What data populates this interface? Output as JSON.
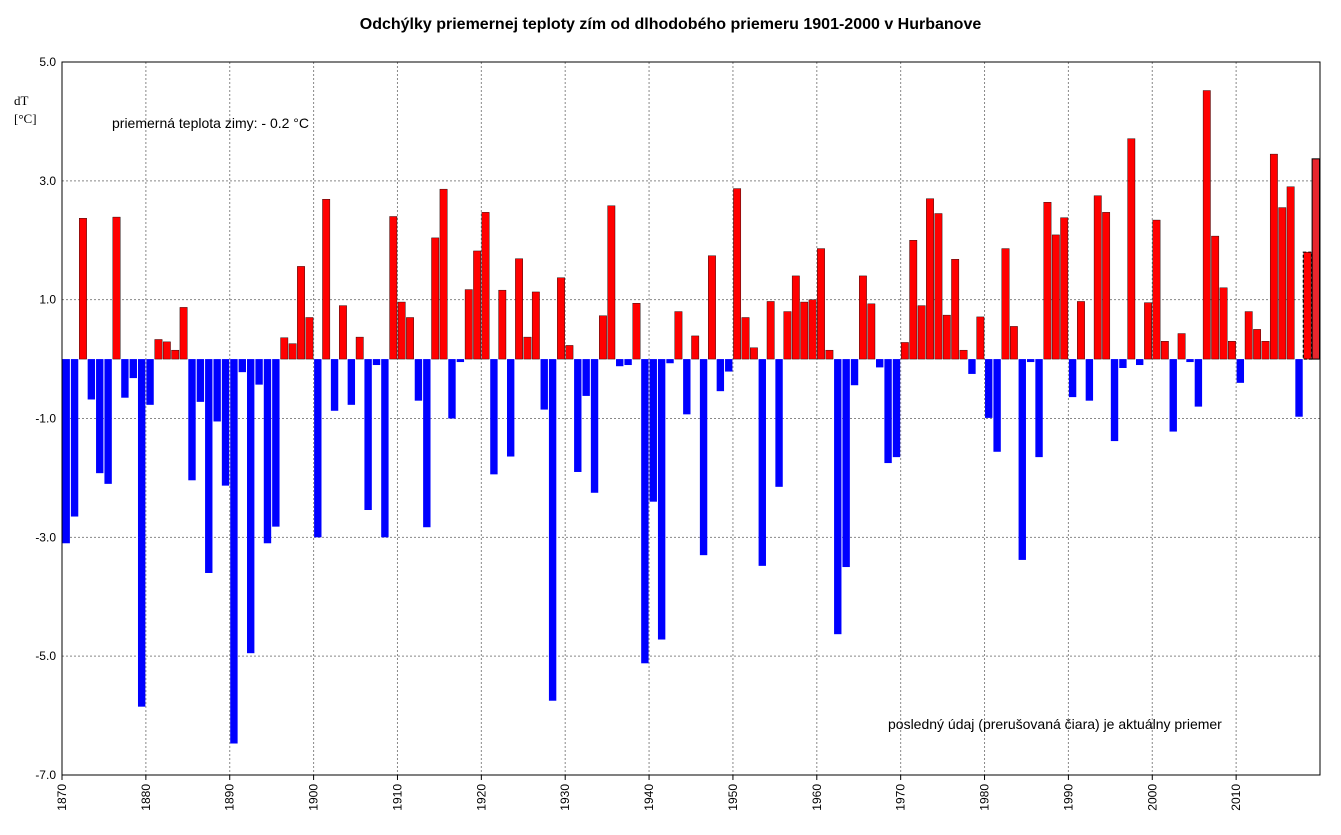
{
  "chart_data": {
    "type": "bar",
    "title": "Odchýlky priemernej teploty zím od dlhodobého priemeru 1901-2000 v Hurbanove",
    "ylabel_line1": "dT",
    "ylabel_line2": "[°C]",
    "annotation_mean": "priemerná teplota zimy: - 0.2 °C",
    "annotation_last": "posledný údaj (prerušovaná čiara) je aktuálny priemer",
    "ylim": [
      -7,
      5
    ],
    "yticks": [
      "5.0",
      "3.0",
      "1.0",
      "-1.0",
      "-3.0",
      "-5.0",
      "-7.0"
    ],
    "xlim": [
      1870,
      2019
    ],
    "xticks": [
      "1870",
      "1880",
      "1890",
      "1900",
      "1910",
      "1920",
      "1930",
      "1940",
      "1950",
      "1960",
      "1970",
      "1980",
      "1990",
      "2000",
      "2010"
    ],
    "grid": true,
    "colors": {
      "positive": "#ff0000",
      "negative": "#0000ff",
      "last": "#e8262e"
    },
    "years": [
      1870,
      1871,
      1872,
      1873,
      1874,
      1875,
      1876,
      1877,
      1878,
      1879,
      1880,
      1881,
      1882,
      1883,
      1884,
      1885,
      1886,
      1887,
      1888,
      1889,
      1890,
      1891,
      1892,
      1893,
      1894,
      1895,
      1896,
      1897,
      1898,
      1899,
      1900,
      1901,
      1902,
      1903,
      1904,
      1905,
      1906,
      1907,
      1908,
      1909,
      1910,
      1911,
      1912,
      1913,
      1914,
      1915,
      1916,
      1917,
      1918,
      1919,
      1920,
      1921,
      1922,
      1923,
      1924,
      1925,
      1926,
      1927,
      1928,
      1929,
      1930,
      1931,
      1932,
      1933,
      1934,
      1935,
      1936,
      1937,
      1938,
      1939,
      1940,
      1941,
      1942,
      1943,
      1944,
      1945,
      1946,
      1947,
      1948,
      1949,
      1950,
      1951,
      1952,
      1953,
      1954,
      1955,
      1956,
      1957,
      1958,
      1959,
      1960,
      1961,
      1962,
      1963,
      1964,
      1965,
      1966,
      1967,
      1968,
      1969,
      1970,
      1971,
      1972,
      1973,
      1974,
      1975,
      1976,
      1977,
      1978,
      1979,
      1980,
      1981,
      1982,
      1983,
      1984,
      1985,
      1986,
      1987,
      1988,
      1989,
      1990,
      1991,
      1992,
      1993,
      1994,
      1995,
      1996,
      1997,
      1998,
      1999,
      2000,
      2001,
      2002,
      2003,
      2004,
      2005,
      2006,
      2007,
      2008,
      2009,
      2010,
      2011,
      2012,
      2013,
      2014,
      2015,
      2016,
      2017,
      2018,
      2019
    ],
    "values": [
      -3.1,
      -2.65,
      2.37,
      -0.68,
      -1.92,
      -2.1,
      2.39,
      -0.65,
      -0.32,
      -5.85,
      -0.77,
      0.33,
      0.29,
      0.15,
      0.87,
      -2.04,
      -0.72,
      -3.6,
      -1.05,
      -2.13,
      -6.47,
      -0.22,
      -4.95,
      -0.43,
      -3.1,
      -2.82,
      0.36,
      0.26,
      1.56,
      0.7,
      -3.0,
      2.69,
      -0.87,
      0.9,
      -0.77,
      0.37,
      -2.54,
      -0.1,
      -3.0,
      2.4,
      0.96,
      0.7,
      -0.7,
      -2.83,
      2.04,
      2.86,
      -1.0,
      -0.05,
      1.17,
      1.82,
      2.47,
      -1.94,
      1.16,
      -1.64,
      1.69,
      0.37,
      1.13,
      -0.85,
      -5.75,
      1.37,
      0.23,
      -1.9,
      -0.62,
      -2.25,
      0.73,
      2.58,
      -0.12,
      -0.1,
      0.94,
      -5.12,
      -2.4,
      -4.72,
      -0.07,
      0.8,
      -0.93,
      0.39,
      -3.3,
      1.74,
      -0.54,
      -0.21,
      2.87,
      0.7,
      0.19,
      -3.48,
      0.97,
      -2.15,
      0.8,
      1.4,
      0.96,
      1.0,
      1.86,
      0.15,
      -4.63,
      -3.5,
      -0.44,
      1.4,
      0.93,
      -0.14,
      -1.75,
      -1.65,
      0.28,
      2.0,
      0.9,
      2.7,
      2.45,
      0.74,
      1.68,
      0.15,
      -0.25,
      0.71,
      -0.99,
      -1.56,
      1.86,
      0.55,
      -3.38,
      -0.05,
      -1.65,
      2.64,
      2.09,
      2.38,
      -0.64,
      0.97,
      -0.7,
      2.75,
      2.47,
      -1.38,
      -0.15,
      3.71,
      -0.1,
      0.95,
      2.34,
      0.3,
      -1.22,
      0.43,
      -0.05,
      -0.8,
      4.52,
      2.07,
      1.2,
      0.3,
      -0.4,
      0.8,
      0.5,
      0.3,
      3.45,
      2.55,
      2.9,
      -0.97,
      1.8,
      3.37
    ]
  }
}
